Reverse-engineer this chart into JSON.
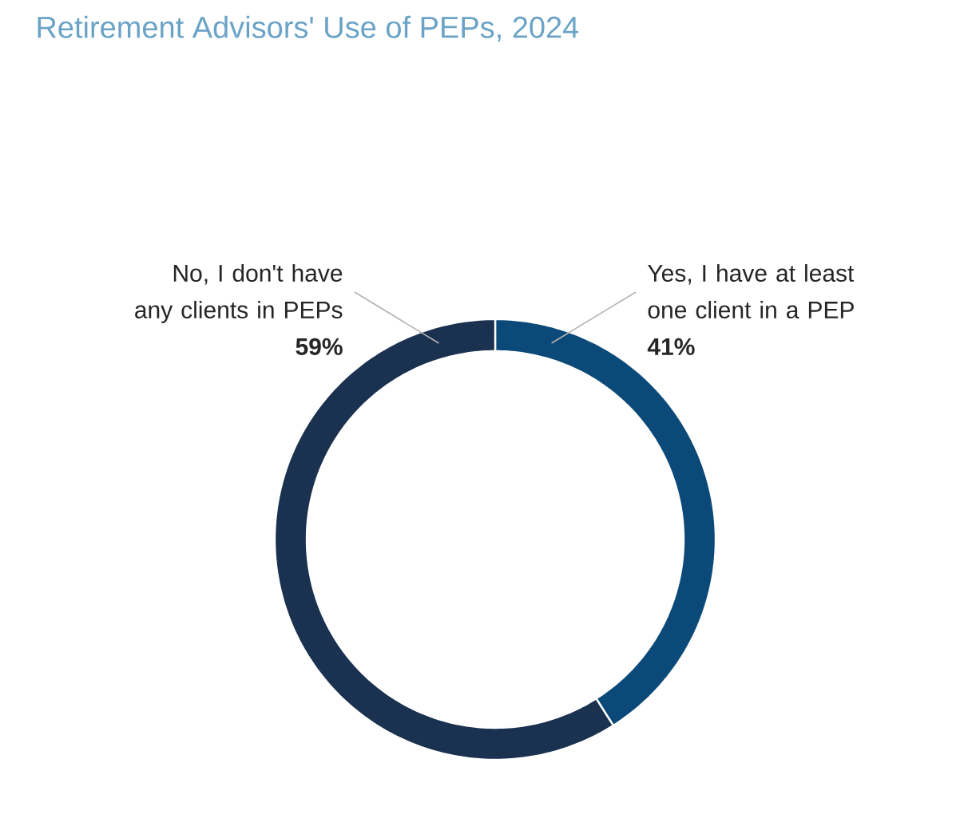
{
  "chart_data": {
    "type": "donut",
    "title": "Retirement Advisors' Use of PEPs, 2024",
    "categories": [
      "Yes, I have at least one client in a PEP",
      "No, I don't have any clients in PEPs"
    ],
    "values": [
      41,
      59
    ],
    "colors": [
      "#0b4a78",
      "#1a3150"
    ],
    "value_labels": [
      "41%",
      "59%"
    ]
  }
}
